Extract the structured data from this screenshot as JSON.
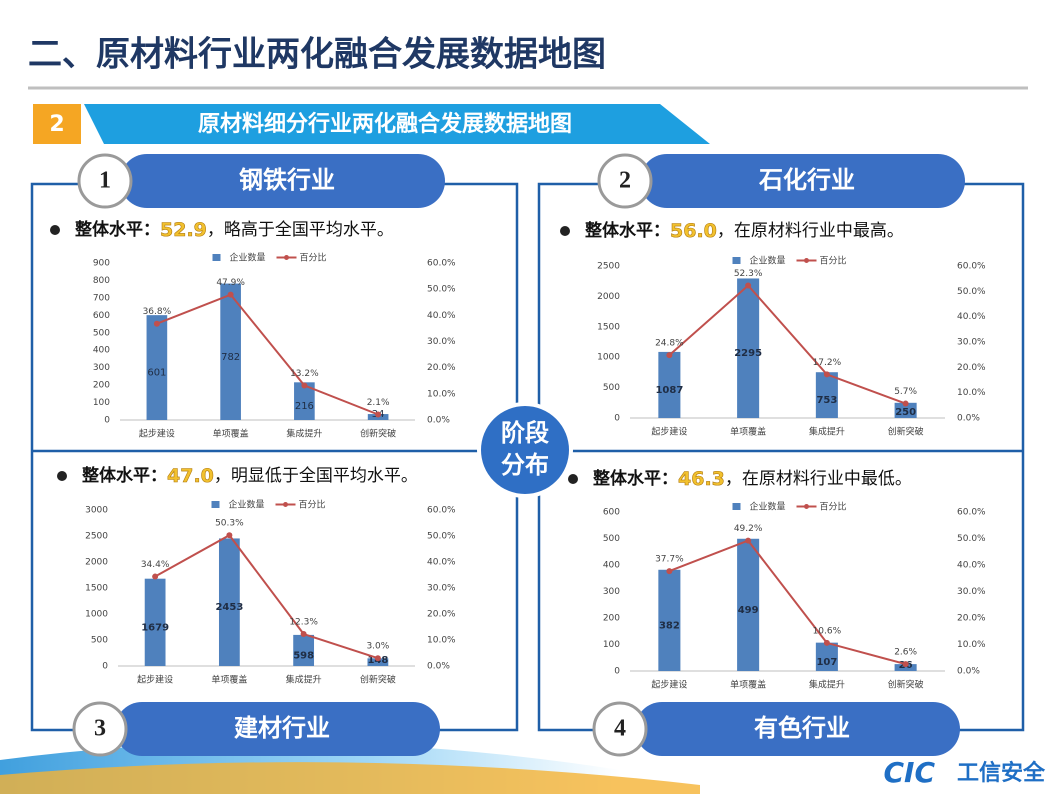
{
  "title": "二、原材料行业两化融合发展数据地图",
  "section": {
    "number": "2",
    "title": "原材料细分行业两化融合发展数据地图"
  },
  "center_label": [
    "阶段",
    "分布"
  ],
  "logo": {
    "mark": "CIC",
    "text": "工信安全"
  },
  "panels": [
    {
      "number": "1",
      "name": "钢铁行业",
      "summary_label": "整体水平：",
      "score": "52.9",
      "summary_text": "，略高于全国平均水平。"
    },
    {
      "number": "2",
      "name": "石化行业",
      "summary_label": "整体水平：",
      "score": "56.0",
      "summary_text": "，在原材料行业中最高。"
    },
    {
      "number": "3",
      "name": "建材行业",
      "summary_label": "整体水平：",
      "score": "47.0",
      "summary_text": "，明显低于全国平均水平。"
    },
    {
      "number": "4",
      "name": "有色行业",
      "summary_label": "整体水平：",
      "score": "46.3",
      "summary_text": "，在原材料行业中最低。"
    }
  ],
  "chart_data": [
    {
      "type": "combo",
      "categories": [
        "起步建设",
        "单项覆盖",
        "集成提升",
        "创新突破"
      ],
      "series": [
        {
          "name": "企业数量",
          "type": "bar",
          "color": "#4f81bd",
          "values": [
            601,
            782,
            216,
            34
          ]
        },
        {
          "name": "百分比",
          "type": "line",
          "axis": "y2",
          "color": "#c0504d",
          "values": [
            36.8,
            47.9,
            13.2,
            2.1
          ],
          "value_labels": [
            "36.8%",
            "47.9%",
            "13.2%",
            "2.1%"
          ]
        }
      ],
      "ylim": [
        0,
        900
      ],
      "yticks": [
        0,
        100,
        200,
        300,
        400,
        500,
        600,
        700,
        800,
        900
      ],
      "y2lim": [
        0,
        60
      ],
      "y2ticks": [
        {
          "value": 0,
          "label": "0.0%"
        },
        {
          "value": 10,
          "label": "10.0%"
        },
        {
          "value": 20,
          "label": "20.0%"
        },
        {
          "value": 30,
          "label": "30.0%"
        },
        {
          "value": 40,
          "label": "40.0%"
        },
        {
          "value": 50,
          "label": "50.0%"
        },
        {
          "value": 60,
          "label": "60.0%"
        }
      ]
    },
    {
      "type": "combo",
      "categories": [
        "起步建设",
        "单项覆盖",
        "集成提升",
        "创新突破"
      ],
      "series": [
        {
          "name": "企业数量",
          "type": "bar",
          "color": "#4f81bd",
          "values": [
            1087,
            2295,
            753,
            250
          ]
        },
        {
          "name": "百分比",
          "type": "line",
          "axis": "y2",
          "color": "#c0504d",
          "values": [
            24.8,
            52.3,
            17.2,
            5.7
          ],
          "value_labels": [
            "24.8%",
            "52.3%",
            "17.2%",
            "5.7%"
          ]
        }
      ],
      "ylim": [
        0,
        2500
      ],
      "yticks": [
        0,
        500,
        1000,
        1500,
        2000,
        2500
      ],
      "y2lim": [
        0,
        60
      ],
      "y2ticks": [
        {
          "value": 0,
          "label": "0.0%"
        },
        {
          "value": 10,
          "label": "10.0%"
        },
        {
          "value": 20,
          "label": "20.0%"
        },
        {
          "value": 30,
          "label": "30.0%"
        },
        {
          "value": 40,
          "label": "40.0%"
        },
        {
          "value": 50,
          "label": "50.0%"
        },
        {
          "value": 60,
          "label": "60.0%"
        }
      ]
    },
    {
      "type": "combo",
      "categories": [
        "起步建设",
        "单项覆盖",
        "集成提升",
        "创新突破"
      ],
      "series": [
        {
          "name": "企业数量",
          "type": "bar",
          "color": "#4f81bd",
          "values": [
            1679,
            2453,
            598,
            148
          ]
        },
        {
          "name": "百分比",
          "type": "line",
          "axis": "y2",
          "color": "#c0504d",
          "values": [
            34.4,
            50.3,
            12.3,
            3.0
          ],
          "value_labels": [
            "34.4%",
            "50.3%",
            "12.3%",
            "3.0%"
          ]
        }
      ],
      "ylim": [
        0,
        3000
      ],
      "yticks": [
        0,
        500,
        1000,
        1500,
        2000,
        2500,
        3000
      ],
      "y2lim": [
        0,
        60
      ],
      "y2ticks": [
        {
          "value": 0,
          "label": "0.0%"
        },
        {
          "value": 10,
          "label": "10.0%"
        },
        {
          "value": 20,
          "label": "20.0%"
        },
        {
          "value": 30,
          "label": "30.0%"
        },
        {
          "value": 40,
          "label": "40.0%"
        },
        {
          "value": 50,
          "label": "50.0%"
        },
        {
          "value": 60,
          "label": "60.0%"
        }
      ]
    },
    {
      "type": "combo",
      "categories": [
        "起步建设",
        "单项覆盖",
        "集成提升",
        "创新突破"
      ],
      "series": [
        {
          "name": "企业数量",
          "type": "bar",
          "color": "#4f81bd",
          "values": [
            382,
            499,
            107,
            26
          ]
        },
        {
          "name": "百分比",
          "type": "line",
          "axis": "y2",
          "color": "#c0504d",
          "values": [
            37.7,
            49.2,
            10.6,
            2.6
          ],
          "value_labels": [
            "37.7%",
            "49.2%",
            "10.6%",
            "2.6%"
          ]
        }
      ],
      "ylim": [
        0,
        600
      ],
      "yticks": [
        0,
        100,
        200,
        300,
        400,
        500,
        600
      ],
      "y2lim": [
        0,
        60
      ],
      "y2ticks": [
        {
          "value": 0,
          "label": "0.0%"
        },
        {
          "value": 10,
          "label": "10.0%"
        },
        {
          "value": 20,
          "label": "20.0%"
        },
        {
          "value": 30,
          "label": "30.0%"
        },
        {
          "value": 40,
          "label": "40.0%"
        },
        {
          "value": 50,
          "label": "50.0%"
        },
        {
          "value": 60,
          "label": "60.0%"
        }
      ]
    }
  ]
}
